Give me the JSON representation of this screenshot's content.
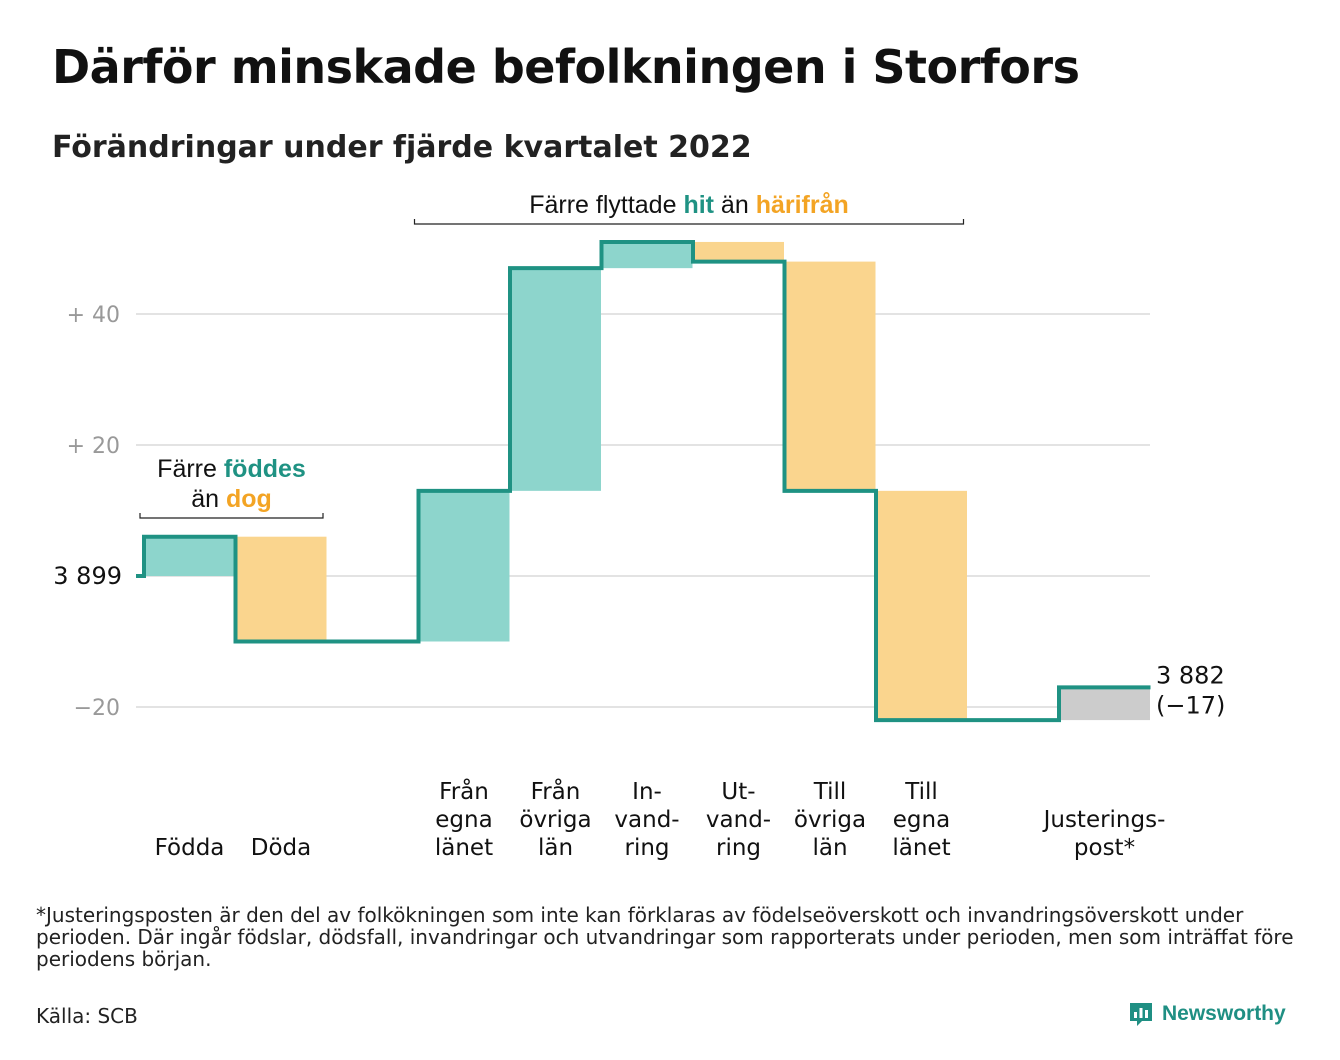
{
  "title": "Därför minskade befolkningen i Storfors",
  "subtitle": "Förändringar under fjärde kvartalet 2022",
  "footnote": "*Justeringsposten är den del av folkökningen som inte kan förklaras av födelseöverskott och invandringsöverskott under perioden. Där ingår födslar, dödsfall, invandringar och utvandringar som rapporterats under perioden, men som inträffat före periodens början.",
  "source": "Källa: SCB",
  "brand": {
    "name": "Newsworthy",
    "icon": "newsworthy-logo-icon"
  },
  "colors": {
    "increase": "#8dd5cc",
    "decrease": "#fad58e",
    "adjustment": "#cccccc",
    "line": "#1f9283",
    "accent_teal": "#1f9283",
    "accent_orange": "#f3a424",
    "grid": "#e3e3e3",
    "tick": "#999999"
  },
  "chart_data": {
    "type": "waterfall",
    "start_value": 3899,
    "start_label": "3 899",
    "end_value": 3882,
    "end_label": "3 882",
    "end_change_label": "(−17)",
    "yaxis": {
      "reference": 3899,
      "ticks": [
        {
          "value": 40,
          "label": "+ 40"
        },
        {
          "value": 20,
          "label": "+ 20"
        },
        {
          "value": -20,
          "label": "−20"
        }
      ],
      "range": [
        -27,
        52
      ]
    },
    "steps": [
      {
        "label": [
          "Födda"
        ],
        "change": 6,
        "kind": "increase"
      },
      {
        "label": [
          "Döda"
        ],
        "change": -16,
        "kind": "decrease"
      },
      {
        "label": [
          ""
        ],
        "change": 0,
        "kind": "gap"
      },
      {
        "label": [
          "Från",
          "egna",
          "länet"
        ],
        "change": 23,
        "kind": "increase"
      },
      {
        "label": [
          "Från",
          "övriga",
          "län"
        ],
        "change": 34,
        "kind": "increase"
      },
      {
        "label": [
          "In-",
          "vand-",
          "ring"
        ],
        "change": 4,
        "kind": "increase"
      },
      {
        "label": [
          "Ut-",
          "vand-",
          "ring"
        ],
        "change": -3,
        "kind": "decrease"
      },
      {
        "label": [
          "Till",
          "övriga",
          "län"
        ],
        "change": -35,
        "kind": "decrease"
      },
      {
        "label": [
          "Till",
          "egna",
          "länet"
        ],
        "change": -35,
        "kind": "decrease"
      },
      {
        "label": [
          ""
        ],
        "change": 0,
        "kind": "gap"
      },
      {
        "label": [
          "Justerings-",
          "post*"
        ],
        "change": 5,
        "kind": "adjustment"
      }
    ],
    "annotations": [
      {
        "parts": [
          {
            "text": "Färre ",
            "color": "text"
          },
          {
            "text": "föddes",
            "color": "accent_teal"
          }
        ],
        "parts2": [
          {
            "text": "än ",
            "color": "text"
          },
          {
            "text": "dog",
            "color": "accent_orange"
          }
        ],
        "span": [
          0,
          1
        ]
      },
      {
        "parts": [
          {
            "text": "Färre flyttade ",
            "color": "text"
          },
          {
            "text": "hit",
            "color": "accent_teal"
          },
          {
            "text": " än ",
            "color": "text"
          },
          {
            "text": "härifrån",
            "color": "accent_orange"
          }
        ],
        "span": [
          3,
          8
        ]
      }
    ]
  }
}
